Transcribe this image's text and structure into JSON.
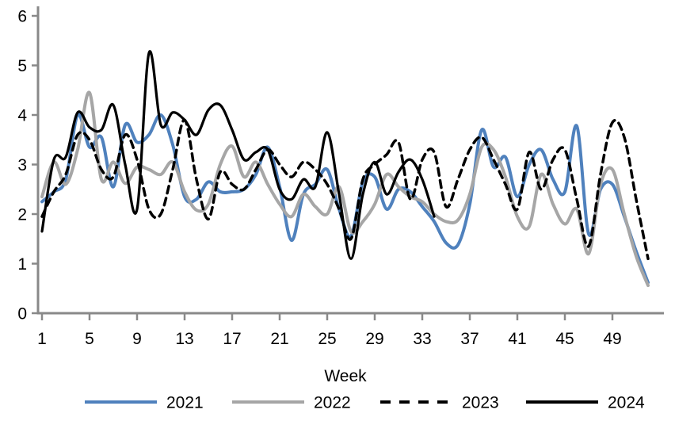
{
  "chart_data": {
    "type": "line",
    "title": "",
    "xlabel": "Week",
    "ylabel": "",
    "xlim": [
      1,
      52
    ],
    "ylim": [
      0,
      6
    ],
    "x_ticks": [
      1,
      5,
      9,
      13,
      17,
      21,
      25,
      29,
      33,
      37,
      41,
      45,
      49
    ],
    "y_ticks": [
      0,
      1,
      2,
      3,
      4,
      5,
      6
    ],
    "grid": false,
    "legend_position": "bottom",
    "axis_color": "#898989",
    "text_color": "#000000",
    "x": [
      1,
      2,
      3,
      4,
      5,
      6,
      7,
      8,
      9,
      10,
      11,
      12,
      13,
      14,
      15,
      16,
      17,
      18,
      19,
      20,
      21,
      22,
      23,
      24,
      25,
      26,
      27,
      28,
      29,
      30,
      31,
      32,
      33,
      34,
      35,
      36,
      37,
      38,
      39,
      40,
      41,
      42,
      43,
      44,
      45,
      46,
      47,
      48,
      49,
      50,
      51,
      52
    ],
    "series": [
      {
        "name": "2021",
        "color": "#4F81BD",
        "style": "solid",
        "stroke_width": 4,
        "values": [
          2.25,
          2.45,
          2.7,
          4.0,
          3.35,
          3.55,
          2.55,
          3.8,
          3.45,
          3.6,
          4.0,
          3.4,
          2.35,
          2.3,
          2.65,
          2.45,
          2.45,
          2.5,
          2.8,
          3.35,
          2.55,
          1.47,
          2.4,
          2.6,
          2.9,
          2.1,
          1.55,
          2.65,
          2.75,
          2.1,
          2.5,
          2.45,
          2.15,
          1.85,
          1.42,
          1.38,
          2.2,
          3.7,
          2.95,
          3.15,
          2.35,
          3.0,
          3.3,
          2.7,
          2.45,
          3.78,
          1.6,
          2.5,
          2.6,
          1.95,
          1.25,
          0.62
        ]
      },
      {
        "name": "2022",
        "color": "#A6A6A6",
        "style": "solid",
        "stroke_width": 4,
        "values": [
          2.35,
          3.05,
          2.6,
          3.3,
          4.45,
          2.7,
          3.05,
          2.62,
          2.95,
          2.9,
          2.8,
          3.05,
          2.45,
          2.08,
          2.2,
          3.0,
          3.37,
          2.75,
          3.05,
          2.6,
          2.2,
          1.95,
          2.4,
          2.15,
          2.0,
          2.55,
          1.65,
          1.85,
          2.2,
          2.8,
          2.55,
          2.35,
          2.25,
          2.0,
          1.85,
          1.88,
          2.4,
          3.35,
          3.3,
          2.75,
          1.95,
          1.75,
          2.8,
          2.2,
          1.8,
          2.1,
          1.2,
          2.6,
          2.9,
          2.0,
          1.15,
          0.56
        ]
      },
      {
        "name": "2023",
        "color": "#000000",
        "style": "dashed",
        "stroke_width": 3.5,
        "values": [
          1.95,
          2.45,
          2.8,
          3.6,
          3.5,
          2.9,
          2.75,
          3.6,
          3.1,
          2.1,
          2.0,
          2.9,
          3.9,
          2.7,
          1.9,
          2.85,
          2.6,
          2.5,
          2.9,
          3.3,
          3.0,
          2.75,
          3.05,
          2.9,
          2.6,
          2.1,
          1.5,
          2.7,
          3.0,
          3.2,
          3.45,
          2.3,
          3.1,
          3.25,
          2.15,
          2.7,
          3.3,
          3.55,
          3.1,
          2.6,
          2.1,
          3.25,
          2.5,
          3.1,
          3.3,
          2.3,
          1.35,
          2.8,
          3.85,
          3.55,
          2.3,
          1.1
        ]
      },
      {
        "name": "2024",
        "color": "#000000",
        "style": "solid",
        "stroke_width": 3.25,
        "values": [
          1.65,
          3.1,
          3.15,
          4.05,
          3.75,
          3.7,
          4.2,
          3.0,
          2.1,
          5.25,
          3.8,
          4.05,
          3.9,
          3.6,
          4.1,
          4.2,
          3.7,
          3.1,
          3.25,
          3.3,
          2.5,
          2.3,
          2.7,
          2.55,
          3.65,
          2.4,
          1.1,
          2.4,
          3.05,
          2.4,
          2.85,
          3.1,
          2.7,
          1.95
        ]
      }
    ]
  }
}
